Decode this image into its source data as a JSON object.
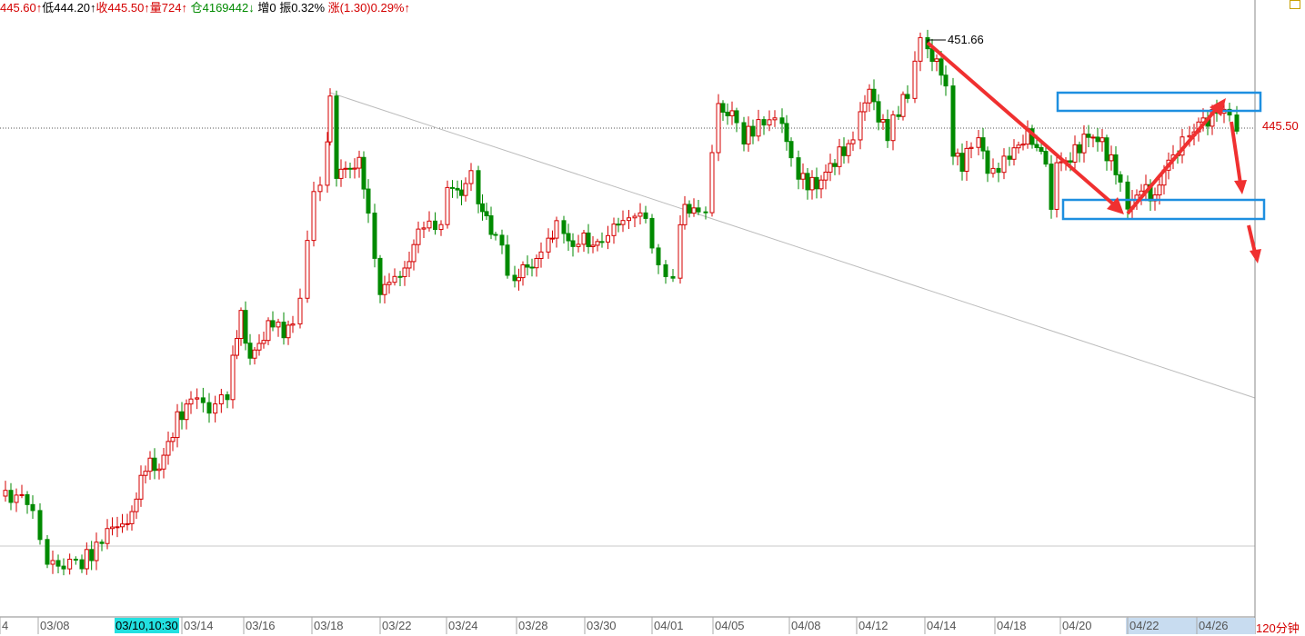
{
  "info_bar": [
    {
      "text": "445.60↑",
      "tone": "up"
    },
    {
      "text": "低444.20↑",
      "tone": "mixed"
    },
    {
      "text": "收445.50↑",
      "tone": "up"
    },
    {
      "text": "量724↑",
      "tone": "up"
    },
    {
      "text": " 仓4169442↓",
      "tone": "dn"
    },
    {
      "text": " 增0 振0.32% ",
      "tone": "blk"
    },
    {
      "text": "涨(1.30)0.29%↑",
      "tone": "up"
    }
  ],
  "price_label": "445.50",
  "high_label": "451.66",
  "period_label": "120分钟",
  "cursor_date": "03/10,10:30",
  "chart_data": {
    "type": "candlestick",
    "current_price": 445.5,
    "high_marker": 451.66,
    "x_ticks": [
      "4",
      "03/08",
      "03/10",
      "03/14",
      "03/16",
      "03/18",
      "03/22",
      "03/24",
      "03/28",
      "03/30",
      "04/01",
      "04/05",
      "04/08",
      "04/12",
      "04/14",
      "04/18",
      "04/20",
      "04/22",
      "04/26"
    ],
    "colors": {
      "up": "#d40000",
      "down": "#008a00",
      "annotation": "#f03030",
      "box": "#1e8fe0"
    }
  }
}
